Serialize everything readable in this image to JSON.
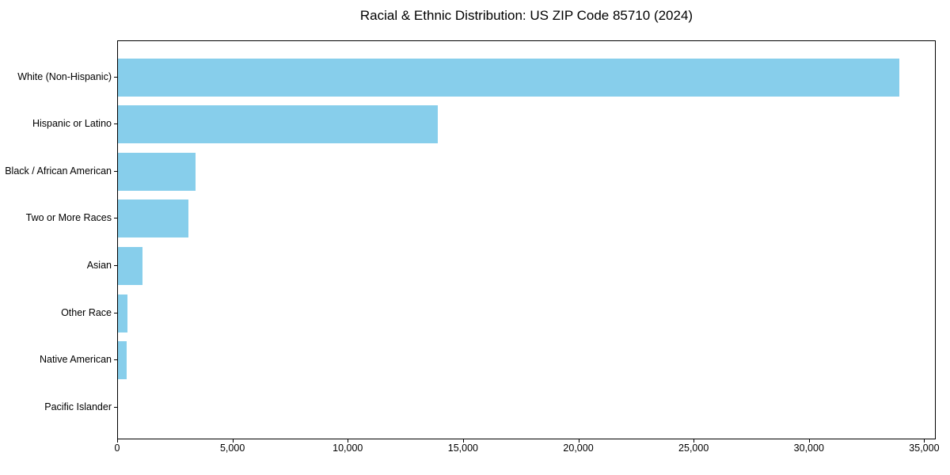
{
  "figure": {
    "background": "#ffffff",
    "axis_color": "#000000",
    "text_color": "#000000"
  },
  "chart_data": {
    "type": "bar",
    "orientation": "horizontal",
    "title": "Racial & Ethnic Distribution: US ZIP Code 85710 (2024)",
    "categories": [
      "White (Non-Hispanic)",
      "Hispanic or Latino",
      "Black / African American",
      "Two or More Races",
      "Asian",
      "Other Race",
      "Native American",
      "Pacific Islander"
    ],
    "values": [
      33900,
      13880,
      3380,
      3050,
      1070,
      420,
      390,
      0
    ],
    "xlabel": "",
    "ylabel": "",
    "xlim": [
      0,
      35500
    ],
    "xticks": [
      0,
      5000,
      10000,
      15000,
      20000,
      25000,
      30000,
      35000
    ],
    "xtick_labels": [
      "0",
      "5,000",
      "10,000",
      "15,000",
      "20,000",
      "25,000",
      "30,000",
      "35,000"
    ],
    "bar_color": "#87CEEB",
    "grid": false,
    "legend": null
  }
}
